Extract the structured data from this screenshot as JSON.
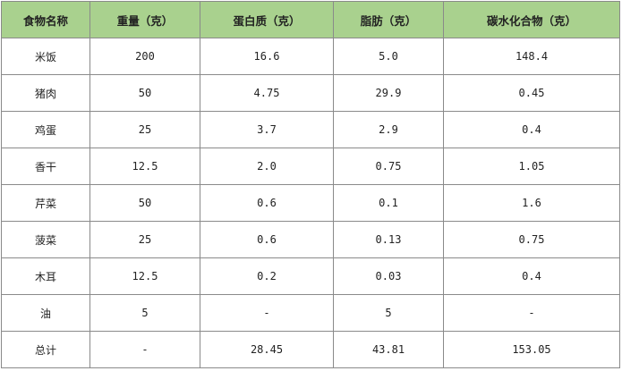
{
  "colors": {
    "header_bg": "#a9d18e",
    "border": "#8a8a8a"
  },
  "headers": [
    "食物名称",
    "重量（克）",
    "蛋白质（克）",
    "脂肪（克）",
    "碳水化合物（克）"
  ],
  "rows": [
    [
      "米饭",
      "200",
      "16.6",
      "5.0",
      "148.4"
    ],
    [
      "猪肉",
      "50",
      "4.75",
      "29.9",
      "0.45"
    ],
    [
      "鸡蛋",
      "25",
      "3.7",
      "2.9",
      "0.4"
    ],
    [
      "香干",
      "12.5",
      "2.0",
      "0.75",
      "1.05"
    ],
    [
      "芹菜",
      "50",
      "0.6",
      "0.1",
      "1.6"
    ],
    [
      "菠菜",
      "25",
      "0.6",
      "0.13",
      "0.75"
    ],
    [
      "木耳",
      "12.5",
      "0.2",
      "0.03",
      "0.4"
    ],
    [
      "油",
      "5",
      "-",
      "5",
      "-"
    ],
    [
      "总计",
      "-",
      "28.45",
      "43.81",
      "153.05"
    ]
  ]
}
